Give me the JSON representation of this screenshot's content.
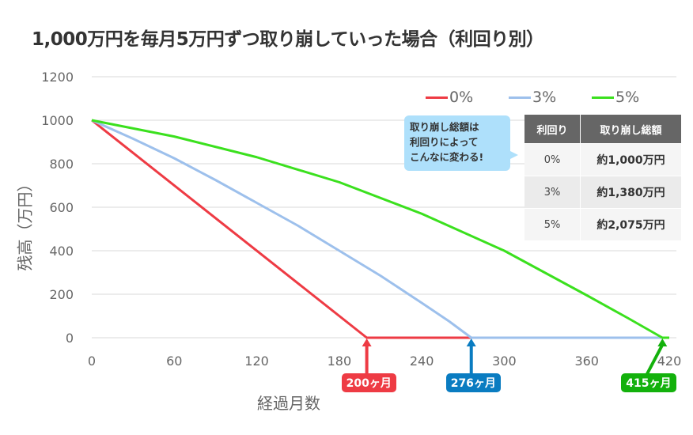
{
  "title": "1,000万円を毎月5万円ずつ取り崩していった場合（利回り別）",
  "chart_data": {
    "type": "line",
    "title": "1,000万円を毎月5万円ずつ取り崩していった場合（利回り別）",
    "xlabel": "経過月数",
    "ylabel": "残高（万円）",
    "xlim": [
      0,
      420
    ],
    "ylim": [
      0,
      1200
    ],
    "xticks": [
      0,
      60,
      120,
      180,
      240,
      300,
      360,
      420
    ],
    "yticks": [
      0,
      200,
      400,
      600,
      800,
      1000,
      1200
    ],
    "grid": true,
    "legend_position": "top-right",
    "series": [
      {
        "name": "0%",
        "color": "#ee3b44",
        "x": [
          0,
          200,
          420
        ],
        "y": [
          1000,
          0,
          0
        ]
      },
      {
        "name": "3%",
        "color": "#9dc0ec",
        "x": [
          0,
          30,
          60,
          90,
          120,
          150,
          180,
          210,
          240,
          260,
          276,
          420
        ],
        "y": [
          1000,
          915,
          825,
          725,
          620,
          515,
          400,
          285,
          160,
          75,
          0,
          0
        ]
      },
      {
        "name": "5%",
        "color": "#3be01e",
        "x": [
          0,
          60,
          120,
          180,
          240,
          300,
          360,
          390,
          415,
          420
        ],
        "y": [
          1000,
          925,
          830,
          715,
          570,
          400,
          195,
          90,
          0,
          0
        ]
      }
    ],
    "annotations": [
      {
        "label": "200ヶ月",
        "x": 200,
        "color": "#ee3b44"
      },
      {
        "label": "276ヶ月",
        "x": 276,
        "color": "#0a7cc1"
      },
      {
        "label": "415ヶ月",
        "x": 415,
        "color": "#13b10c"
      }
    ]
  },
  "callout": [
    "取り崩し総額は",
    "利回りによって",
    "こんなに変わる!"
  ],
  "table": {
    "headers": [
      "利回り",
      "取り崩し総額"
    ],
    "rows": [
      [
        "0%",
        "約1,000万円"
      ],
      [
        "3%",
        "約1,380万円"
      ],
      [
        "5%",
        "約2,075万円"
      ]
    ]
  }
}
